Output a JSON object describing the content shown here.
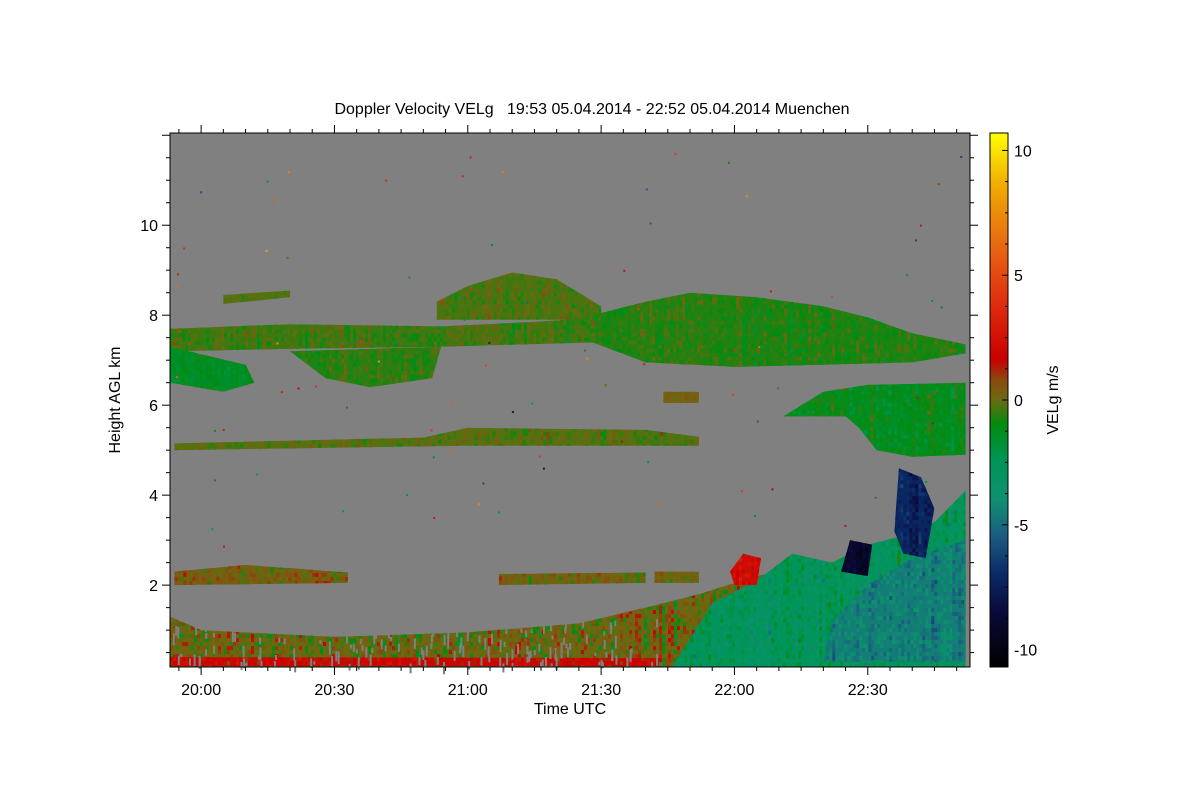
{
  "chart_data": {
    "type": "heatmap",
    "title": "Doppler Velocity VELg   19:53 05.04.2014 - 22:52 05.04.2014 Muenchen",
    "xlabel": "Time UTC",
    "ylabel": "Height AGL km",
    "colorbar_label": "VELg m/s",
    "time_unit": "minutes after 20:00 UTC",
    "xlim": [
      -7,
      173
    ],
    "ylim": [
      0.18,
      12.05
    ],
    "clim": [
      -10.7,
      10.7
    ],
    "x_ticks": [
      {
        "value": 0,
        "label": "20:00"
      },
      {
        "value": 30,
        "label": "20:30"
      },
      {
        "value": 60,
        "label": "21:00"
      },
      {
        "value": 90,
        "label": "21:30"
      },
      {
        "value": 120,
        "label": "22:00"
      },
      {
        "value": 150,
        "label": "22:30"
      }
    ],
    "y_ticks": [
      {
        "value": 2,
        "label": "2"
      },
      {
        "value": 4,
        "label": "4"
      },
      {
        "value": 6,
        "label": "6"
      },
      {
        "value": 8,
        "label": "8"
      },
      {
        "value": 10,
        "label": "10"
      }
    ],
    "colorbar_ticks": [
      {
        "value": 10,
        "label": "10"
      },
      {
        "value": 5,
        "label": "5"
      },
      {
        "value": 0,
        "label": "0"
      },
      {
        "value": -5,
        "label": "-5"
      },
      {
        "value": -10,
        "label": "-10"
      }
    ],
    "no_data_color": "#808080",
    "colormap": [
      {
        "v": -10.7,
        "c": "#000000"
      },
      {
        "v": -8.5,
        "c": "#0a0a3a"
      },
      {
        "v": -7,
        "c": "#0a2a66"
      },
      {
        "v": -5.5,
        "c": "#1a5a80"
      },
      {
        "v": -4,
        "c": "#0f9070"
      },
      {
        "v": -2.5,
        "c": "#00955a"
      },
      {
        "v": -1,
        "c": "#008c10"
      },
      {
        "v": 0,
        "c": "#6b6a10"
      },
      {
        "v": 0.8,
        "c": "#8a4a10"
      },
      {
        "v": 1.6,
        "c": "#c80000"
      },
      {
        "v": 4,
        "c": "#e03010"
      },
      {
        "v": 6.5,
        "c": "#e87010"
      },
      {
        "v": 8.5,
        "c": "#f0a800"
      },
      {
        "v": 10.7,
        "c": "#ffff00"
      }
    ],
    "regions": [
      {
        "name": "boundary-layer",
        "velocity": 0.1,
        "spread": 1.6,
        "points": [
          [
            -7,
            0.18
          ],
          [
            172,
            0.18
          ],
          [
            172,
            3.4
          ],
          [
            160,
            3.0
          ],
          [
            148,
            2.6
          ],
          [
            135,
            2.4
          ],
          [
            125,
            2.2
          ],
          [
            112,
            1.8
          ],
          [
            100,
            1.5
          ],
          [
            85,
            1.15
          ],
          [
            60,
            0.95
          ],
          [
            30,
            0.85
          ],
          [
            0,
            1.0
          ],
          [
            -7,
            1.3
          ]
        ]
      },
      {
        "name": "boundary-layer-red-base",
        "velocity": 1.8,
        "spread": 1.0,
        "points": [
          [
            -7,
            0.2
          ],
          [
            103,
            0.2
          ],
          [
            103,
            0.38
          ],
          [
            -7,
            0.4
          ]
        ]
      },
      {
        "name": "convective-green",
        "velocity": -2.6,
        "spread": 1.6,
        "points": [
          [
            106,
            0.18
          ],
          [
            172,
            0.18
          ],
          [
            172,
            4.1
          ],
          [
            165,
            3.4
          ],
          [
            158,
            3.1
          ],
          [
            150,
            2.9
          ],
          [
            142,
            2.5
          ],
          [
            133,
            2.7
          ],
          [
            125,
            2.1
          ],
          [
            115,
            1.6
          ]
        ]
      },
      {
        "name": "convective-teal-core",
        "velocity": -4.5,
        "spread": 1.2,
        "points": [
          [
            140,
            0.3
          ],
          [
            172,
            0.3
          ],
          [
            172,
            3.0
          ],
          [
            160,
            2.6
          ],
          [
            150,
            2.0
          ],
          [
            142,
            1.2
          ]
        ]
      },
      {
        "name": "red-cells",
        "velocity": 2.2,
        "spread": 0.8,
        "points": [
          [
            120,
            2.0
          ],
          [
            125,
            2.0
          ],
          [
            126,
            2.6
          ],
          [
            122,
            2.7
          ],
          [
            119,
            2.3
          ]
        ]
      },
      {
        "name": "dark-plume",
        "velocity": -7.2,
        "spread": 1.0,
        "points": [
          [
            156,
            3.2
          ],
          [
            157,
            4.6
          ],
          [
            162,
            4.4
          ],
          [
            165,
            3.7
          ],
          [
            163,
            2.6
          ],
          [
            158,
            2.7
          ]
        ]
      },
      {
        "name": "dark-scatter",
        "velocity": -9.0,
        "spread": 1.0,
        "points": [
          [
            144,
            2.3
          ],
          [
            150,
            2.2
          ],
          [
            151,
            2.9
          ],
          [
            146,
            3.0
          ]
        ]
      },
      {
        "name": "low-layer-1",
        "velocity": 0.3,
        "spread": 1.2,
        "points": [
          [
            -6,
            2.0
          ],
          [
            33,
            2.05
          ],
          [
            33,
            2.28
          ],
          [
            10,
            2.45
          ],
          [
            -6,
            2.3
          ]
        ]
      },
      {
        "name": "low-layer-2",
        "velocity": 0.2,
        "spread": 1.0,
        "points": [
          [
            67,
            2.0
          ],
          [
            100,
            2.05
          ],
          [
            100,
            2.28
          ],
          [
            67,
            2.25
          ]
        ]
      },
      {
        "name": "low-layer-3",
        "velocity": 0.2,
        "spread": 1.0,
        "points": [
          [
            102,
            2.05
          ],
          [
            112,
            2.05
          ],
          [
            112,
            2.3
          ],
          [
            102,
            2.3
          ]
        ]
      },
      {
        "name": "thin-layer-5km",
        "velocity": -0.2,
        "spread": 0.8,
        "points": [
          [
            -6,
            5.0
          ],
          [
            60,
            5.1
          ],
          [
            112,
            5.1
          ],
          [
            112,
            5.3
          ],
          [
            100,
            5.45
          ],
          [
            60,
            5.5
          ],
          [
            50,
            5.28
          ],
          [
            -6,
            5.15
          ]
        ]
      },
      {
        "name": "upper-band-left",
        "velocity": -0.4,
        "spread": 0.9,
        "points": [
          [
            -7,
            7.2
          ],
          [
            20,
            7.25
          ],
          [
            54,
            7.3
          ],
          [
            90,
            7.4
          ],
          [
            90,
            7.95
          ],
          [
            75,
            7.85
          ],
          [
            54,
            7.75
          ],
          [
            20,
            7.8
          ],
          [
            -7,
            7.7
          ]
        ]
      },
      {
        "name": "blob-left-green",
        "velocity": -1.4,
        "spread": 0.6,
        "points": [
          [
            -7,
            6.5
          ],
          [
            5,
            6.3
          ],
          [
            12,
            6.5
          ],
          [
            10,
            6.9
          ],
          [
            -7,
            7.3
          ]
        ]
      },
      {
        "name": "blob-2030",
        "velocity": -0.6,
        "spread": 0.8,
        "points": [
          [
            20,
            7.2
          ],
          [
            28,
            6.6
          ],
          [
            38,
            6.4
          ],
          [
            52,
            6.6
          ],
          [
            54,
            7.3
          ]
        ]
      },
      {
        "name": "cloud-2100",
        "velocity": -0.3,
        "spread": 0.8,
        "points": [
          [
            53,
            8.3
          ],
          [
            60,
            8.65
          ],
          [
            70,
            8.95
          ],
          [
            80,
            8.8
          ],
          [
            90,
            8.2
          ],
          [
            90,
            7.9
          ],
          [
            53,
            7.9
          ]
        ]
      },
      {
        "name": "cloud-main",
        "velocity": -0.7,
        "spread": 0.9,
        "points": [
          [
            88,
            7.4
          ],
          [
            88,
            8.0
          ],
          [
            100,
            8.3
          ],
          [
            110,
            8.5
          ],
          [
            125,
            8.4
          ],
          [
            140,
            8.2
          ],
          [
            150,
            7.95
          ],
          [
            160,
            7.6
          ],
          [
            172,
            7.35
          ],
          [
            172,
            7.15
          ],
          [
            160,
            6.95
          ],
          [
            140,
            6.9
          ],
          [
            120,
            6.85
          ],
          [
            100,
            6.95
          ]
        ]
      },
      {
        "name": "small-layer-8km",
        "velocity": -0.2,
        "spread": 0.5,
        "points": [
          [
            5,
            8.25
          ],
          [
            20,
            8.4
          ],
          [
            20,
            8.55
          ],
          [
            5,
            8.45
          ]
        ]
      },
      {
        "name": "mid-layer-right",
        "velocity": -1.2,
        "spread": 1.0,
        "points": [
          [
            131,
            5.75
          ],
          [
            140,
            6.3
          ],
          [
            150,
            6.45
          ],
          [
            172,
            6.5
          ],
          [
            172,
            4.9
          ],
          [
            160,
            4.85
          ],
          [
            152,
            5.0
          ],
          [
            148,
            5.5
          ],
          [
            145,
            5.75
          ]
        ]
      },
      {
        "name": "small-blob-6km",
        "velocity": 0.2,
        "spread": 0.4,
        "points": [
          [
            104,
            6.05
          ],
          [
            112,
            6.05
          ],
          [
            112,
            6.3
          ],
          [
            104,
            6.3
          ]
        ]
      }
    ]
  }
}
